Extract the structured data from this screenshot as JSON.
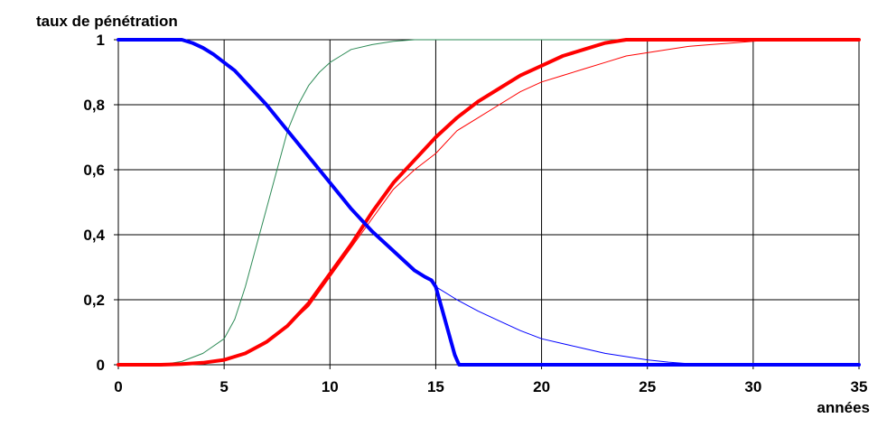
{
  "chart_data": {
    "type": "line",
    "title": "",
    "ylabel": "taux de pénétration",
    "xlabel": "années",
    "xlim": [
      0,
      35
    ],
    "ylim": [
      0,
      1
    ],
    "grid": true,
    "x_ticks": [
      {
        "value": 0,
        "label": "0"
      },
      {
        "value": 5,
        "label": "5"
      },
      {
        "value": 10,
        "label": "10"
      },
      {
        "value": 15,
        "label": "15"
      },
      {
        "value": 20,
        "label": "20"
      },
      {
        "value": 25,
        "label": "25"
      },
      {
        "value": 30,
        "label": "30"
      },
      {
        "value": 35,
        "label": "35"
      }
    ],
    "y_ticks": [
      {
        "value": 0,
        "label": "0"
      },
      {
        "value": 0.2,
        "label": "0,2"
      },
      {
        "value": 0.4,
        "label": "0,4"
      },
      {
        "value": 0.6,
        "label": "0,6"
      },
      {
        "value": 0.8,
        "label": "0,8"
      },
      {
        "value": 1,
        "label": "1"
      }
    ],
    "series": [
      {
        "color": "#2e8b57",
        "weight": "thin",
        "points": [
          [
            0,
            0
          ],
          [
            2,
            0
          ],
          [
            3,
            0.01
          ],
          [
            4,
            0.035
          ],
          [
            5,
            0.08
          ],
          [
            5.5,
            0.14
          ],
          [
            6,
            0.24
          ],
          [
            6.5,
            0.36
          ],
          [
            7,
            0.48
          ],
          [
            7.5,
            0.6
          ],
          [
            8,
            0.72
          ],
          [
            8.5,
            0.8
          ],
          [
            9,
            0.86
          ],
          [
            9.5,
            0.9
          ],
          [
            10,
            0.93
          ],
          [
            10.5,
            0.95
          ],
          [
            11,
            0.97
          ],
          [
            12,
            0.985
          ],
          [
            13,
            0.995
          ],
          [
            14,
            1
          ],
          [
            35,
            1
          ]
        ]
      },
      {
        "color": "#ff0000",
        "weight": "thin",
        "points": [
          [
            0,
            0
          ],
          [
            2,
            0
          ],
          [
            3,
            0.002
          ],
          [
            4,
            0.006
          ],
          [
            5,
            0.015
          ],
          [
            6,
            0.035
          ],
          [
            7,
            0.07
          ],
          [
            8,
            0.12
          ],
          [
            9,
            0.18
          ],
          [
            10,
            0.27
          ],
          [
            11,
            0.36
          ],
          [
            12,
            0.45
          ],
          [
            13,
            0.54
          ],
          [
            14,
            0.6
          ],
          [
            15,
            0.65
          ],
          [
            16,
            0.72
          ],
          [
            17,
            0.76
          ],
          [
            18,
            0.8
          ],
          [
            19,
            0.84
          ],
          [
            20,
            0.87
          ],
          [
            21,
            0.89
          ],
          [
            22,
            0.91
          ],
          [
            23,
            0.93
          ],
          [
            24,
            0.95
          ],
          [
            25,
            0.96
          ],
          [
            26,
            0.97
          ],
          [
            27,
            0.98
          ],
          [
            28,
            0.985
          ],
          [
            29,
            0.99
          ],
          [
            30,
            0.995
          ],
          [
            31,
            1
          ],
          [
            35,
            1
          ]
        ]
      },
      {
        "color": "#ff0000",
        "weight": "thick",
        "points": [
          [
            0,
            0
          ],
          [
            2,
            0
          ],
          [
            3,
            0.002
          ],
          [
            4,
            0.006
          ],
          [
            5,
            0.015
          ],
          [
            6,
            0.035
          ],
          [
            7,
            0.07
          ],
          [
            8,
            0.12
          ],
          [
            9,
            0.19
          ],
          [
            10,
            0.28
          ],
          [
            11,
            0.37
          ],
          [
            12,
            0.47
          ],
          [
            13,
            0.56
          ],
          [
            14,
            0.63
          ],
          [
            15,
            0.7
          ],
          [
            16,
            0.76
          ],
          [
            17,
            0.81
          ],
          [
            18,
            0.85
          ],
          [
            19,
            0.89
          ],
          [
            20,
            0.92
          ],
          [
            21,
            0.95
          ],
          [
            22,
            0.97
          ],
          [
            23,
            0.99
          ],
          [
            24,
            1
          ],
          [
            35,
            1
          ]
        ]
      },
      {
        "color": "#0000ff",
        "weight": "thin",
        "points": [
          [
            14.7,
            0.26
          ],
          [
            15,
            0.24
          ],
          [
            16,
            0.2
          ],
          [
            17,
            0.165
          ],
          [
            18,
            0.135
          ],
          [
            19,
            0.105
          ],
          [
            20,
            0.08
          ],
          [
            21,
            0.065
          ],
          [
            22,
            0.05
          ],
          [
            23,
            0.035
          ],
          [
            24,
            0.025
          ],
          [
            25,
            0.015
          ],
          [
            26,
            0.008
          ],
          [
            27,
            0.003
          ],
          [
            28,
            0
          ],
          [
            35,
            0
          ]
        ]
      },
      {
        "color": "#0000ff",
        "weight": "thick",
        "points": [
          [
            0,
            1
          ],
          [
            3,
            1
          ],
          [
            3.5,
            0.99
          ],
          [
            4,
            0.975
          ],
          [
            4.5,
            0.955
          ],
          [
            5,
            0.93
          ],
          [
            5.5,
            0.905
          ],
          [
            6,
            0.87
          ],
          [
            7,
            0.8
          ],
          [
            8,
            0.72
          ],
          [
            9,
            0.64
          ],
          [
            10,
            0.56
          ],
          [
            11,
            0.48
          ],
          [
            12,
            0.41
          ],
          [
            13,
            0.35
          ],
          [
            14,
            0.29
          ],
          [
            14.5,
            0.27
          ],
          [
            14.8,
            0.26
          ],
          [
            15,
            0.24
          ],
          [
            15.3,
            0.17
          ],
          [
            15.6,
            0.1
          ],
          [
            15.9,
            0.03
          ],
          [
            16.1,
            0
          ],
          [
            35,
            0
          ]
        ]
      }
    ]
  }
}
